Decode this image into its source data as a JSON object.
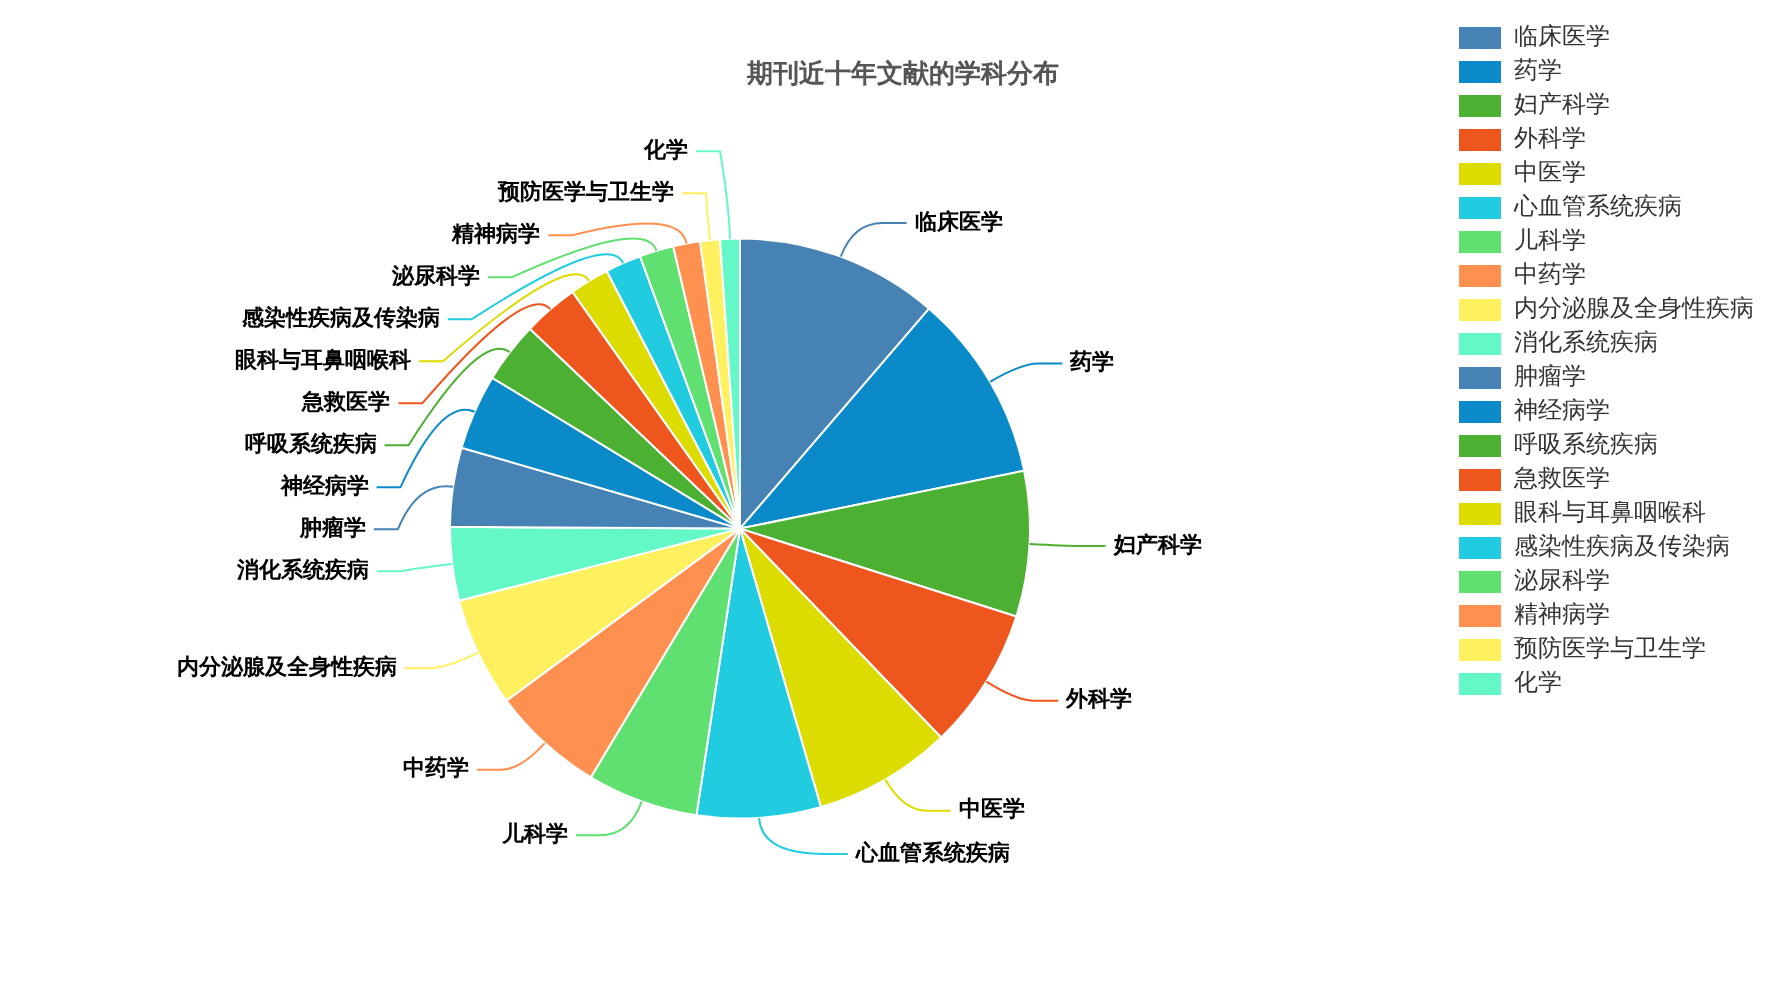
{
  "chart_data": {
    "type": "pie",
    "title": "期刊近十年文献的学科分布",
    "categories": [
      "临床医学",
      "药学",
      "妇产科学",
      "外科学",
      "中医学",
      "心血管系统疾病",
      "儿科学",
      "中药学",
      "内分泌腺及全身性疾病",
      "消化系统疾病",
      "肿瘤学",
      "神经病学",
      "呼吸系统疾病",
      "急救医学",
      "眼科与耳鼻咽喉科",
      "感染性疾病及传染病",
      "泌尿科学",
      "精神病学",
      "预防医学与卫生学",
      "化学"
    ],
    "values": [
      11.3,
      10.5,
      8.1,
      7.9,
      7.7,
      6.9,
      6.2,
      6.3,
      6.1,
      4.1,
      4.4,
      4.2,
      3.4,
      3.1,
      2.2,
      2.0,
      1.9,
      1.5,
      1.1,
      1.1
    ],
    "colors": [
      "#4682b4",
      "#0a8ac8",
      "#4cb032",
      "#ee561e",
      "#dcdc00",
      "#22cce0",
      "#60e070",
      "#ff9050",
      "#fff060",
      "#64f8c8",
      "#4682b4",
      "#0a8ac8",
      "#4cb032",
      "#ee561e",
      "#dcdc00",
      "#22cce0",
      "#60e070",
      "#ff9050",
      "#fff060",
      "#64f8c8"
    ],
    "legend": "right"
  }
}
